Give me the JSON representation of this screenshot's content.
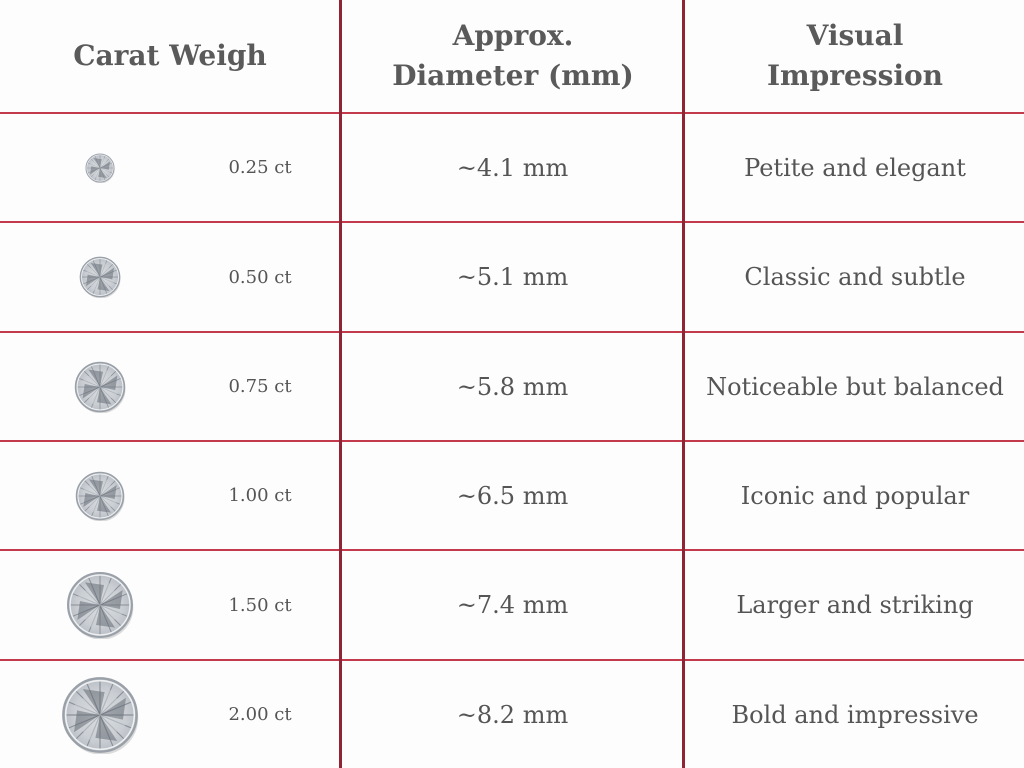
{
  "headers": {
    "carat": "Carat Weigh",
    "diameter_line1": "Approx.",
    "diameter_line2": "Diameter (mm)",
    "impression_line1": "Visual",
    "impression_line2": "Impression"
  },
  "colors": {
    "grid_horizontal": "#c23a4c",
    "grid_vertical": "#8e2434",
    "text": "#555555"
  },
  "rows": [
    {
      "carat": "0.25 ct",
      "diameter": "~4.1 mm",
      "impression": "Petite and elegant",
      "icon": "diamond-icon"
    },
    {
      "carat": "0.50 ct",
      "diameter": "~5.1 mm",
      "impression": "Classic and subtle",
      "icon": "diamond-icon"
    },
    {
      "carat": "0.75 ct",
      "diameter": "~5.8 mm",
      "impression": "Noticeable but balanced",
      "icon": "diamond-icon"
    },
    {
      "carat": "1.00 ct",
      "diameter": "~6.5 mm",
      "impression": "Iconic and popular",
      "icon": "diamond-icon"
    },
    {
      "carat": "1.50 ct",
      "diameter": "~7.4 mm",
      "impression": "Larger and striking",
      "icon": "diamond-icon"
    },
    {
      "carat": "2.00 ct",
      "diameter": "~8.2 mm",
      "impression": "Bold and impressive",
      "icon": "diamond-icon"
    }
  ]
}
